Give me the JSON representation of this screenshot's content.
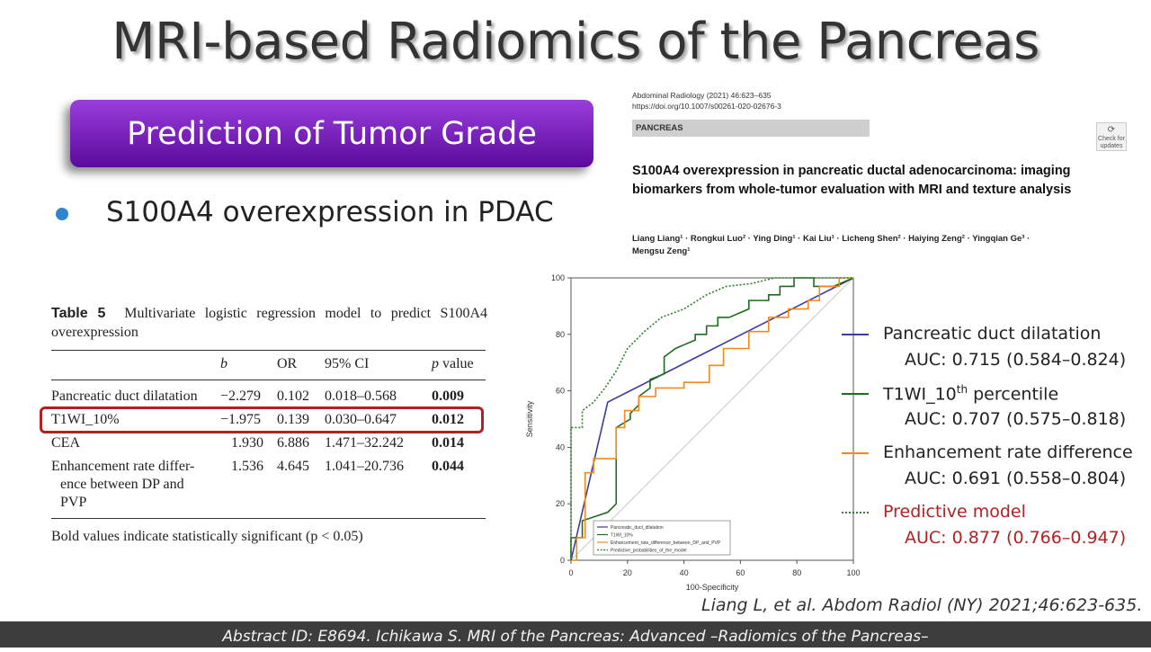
{
  "slide": {
    "title": "MRI-based Radiomics of the Pancreas",
    "section_label": "Prediction of Tumor Grade",
    "bullet": "S100A4 overexpression in PDAC",
    "citation": "Liang L, et al. Abdom Radiol (NY) 2021;46:623-635.",
    "footer": "Abstract ID: E8694. Ichikawa S. MRI of the Pancreas: Advanced –Radiomics of the Pancreas–",
    "colors": {
      "pill": "#7a22c0",
      "bullet": "#2e86d1",
      "highlight": "#b22222",
      "footer": "#3d3d3d"
    }
  },
  "table": {
    "label": "Table 5",
    "caption": "Multivariate logistic regression model to predict S100A4 overexpression",
    "headers": [
      "b",
      "OR",
      "95% CI",
      "p value"
    ],
    "rows": [
      {
        "name": "Pancreatic duct dilatation",
        "b": "−2.279",
        "or": "0.102",
        "ci": "0.018–0.568",
        "p": "0.009"
      },
      {
        "name": "T1WI_10%",
        "b": "−1.975",
        "or": "0.139",
        "ci": "0.030–0.647",
        "p": "0.012"
      },
      {
        "name": "CEA",
        "b": "1.930",
        "or": "6.886",
        "ci": "1.471–32.242",
        "p": "0.014"
      },
      {
        "name_line1": "Enhancement rate differ-",
        "name_line2": "ence between DP and",
        "name_line3": "PVP",
        "b": "1.536",
        "or": "4.645",
        "ci": "1.041–20.736",
        "p": "0.044"
      }
    ],
    "footnote": "Bold values indicate statistically significant (p < 0.05)"
  },
  "paper": {
    "journal": "Abdominal Radiology (2021) 46:623–635",
    "doi": "https://doi.org/10.1007/s00261-020-02676-3",
    "section": "PANCREAS",
    "check_label": "Check for updates",
    "title": "S100A4 overexpression in pancreatic ductal adenocarcinoma: imaging biomarkers from whole-tumor evaluation with MRI and texture analysis",
    "authors_line1": "Liang Liang¹ · Rongkui Luo² · Ying Ding¹ · Kai Liu¹ · Licheng Shen² · Haiying Zeng² · Yingqian Ge³ ·",
    "authors_line2": "Mengsu Zeng¹"
  },
  "legend": [
    {
      "label": "Pancreatic duct dilatation",
      "auc": "AUC: 0.715 (0.584–0.824)",
      "color": "#3b3b9a"
    },
    {
      "label": "T1WI_10th percentile",
      "auc": "AUC: 0.707 (0.575–0.818)",
      "color": "#1f6b1f"
    },
    {
      "label": "Enhancement rate difference",
      "auc": "AUC: 0.691 (0.558–0.804)",
      "color": "#f08a1c"
    },
    {
      "label": "Predictive model",
      "auc": "AUC: 0.877 (0.766–0.947)",
      "color": "#2f7d2f",
      "text_color": "#b22222"
    }
  ],
  "chart_data": {
    "type": "line",
    "xlabel": "100-Specificity",
    "ylabel": "Sensitivity",
    "xlim": [
      0,
      100
    ],
    "ylim": [
      0,
      100
    ],
    "xticks": [
      0,
      20,
      40,
      60,
      80,
      100
    ],
    "yticks": [
      0,
      20,
      40,
      60,
      80,
      100
    ],
    "inset_legend": [
      "Pancreatic_duct_dilatation",
      "T1WI_10%",
      "Enhancement_rate_difference_between_DP_and_PVP",
      "Predictive_probabilities_of_the_model"
    ],
    "series": [
      {
        "name": "Pancreatic_duct_dilatation",
        "color": "#3b3b9a",
        "style": "solid",
        "x": [
          0,
          13,
          100
        ],
        "y": [
          0,
          56,
          100
        ]
      },
      {
        "name": "T1WI_10%",
        "color": "#1f6b1f",
        "style": "solid",
        "x": [
          0,
          0,
          4,
          4,
          13,
          16,
          16,
          21,
          21,
          24,
          24,
          28,
          28,
          33,
          33,
          37,
          37,
          44,
          44,
          48,
          48,
          52,
          52,
          56,
          56,
          63,
          63,
          70,
          70,
          74,
          74,
          79,
          79,
          86,
          86,
          93,
          100
        ],
        "y": [
          0,
          8,
          8,
          14,
          17,
          20,
          47,
          50,
          52,
          55,
          58,
          61,
          64,
          66,
          72,
          75,
          75,
          78,
          80,
          80,
          83,
          83,
          86,
          86,
          86,
          89,
          92,
          92,
          94,
          94,
          97,
          97,
          100,
          100,
          97,
          97,
          100
        ]
      },
      {
        "name": "Enhancement_rate_difference_between_DP_and_PVP",
        "color": "#f08a1c",
        "style": "solid",
        "x": [
          0,
          2,
          2,
          5,
          5,
          8,
          8,
          16,
          16,
          19,
          19,
          24,
          24,
          30,
          30,
          40,
          40,
          49,
          49,
          54,
          54,
          63,
          63,
          70,
          70,
          77,
          77,
          84,
          84,
          88,
          88,
          95,
          95,
          100
        ],
        "y": [
          0,
          0,
          8,
          8,
          31,
          31,
          36,
          36,
          47,
          47,
          53,
          53,
          58,
          58,
          61,
          61,
          63,
          63,
          69,
          69,
          75,
          75,
          81,
          81,
          86,
          86,
          89,
          89,
          92,
          92,
          97,
          97,
          100,
          100
        ]
      },
      {
        "name": "Predictive_probabilities_of_the_model",
        "color": "#2f7d2f",
        "style": "dotted",
        "x": [
          0,
          0,
          2,
          4,
          4,
          8,
          12,
          16,
          20,
          26,
          32,
          40,
          48,
          55,
          64,
          72,
          100
        ],
        "y": [
          0,
          47,
          47,
          47,
          53,
          56,
          61,
          67,
          75,
          81,
          86,
          89,
          94,
          97,
          98,
          100,
          100
        ]
      },
      {
        "name": "reference",
        "color": "#c8c8c8",
        "style": "solid",
        "x": [
          0,
          100
        ],
        "y": [
          0,
          100
        ]
      }
    ]
  }
}
